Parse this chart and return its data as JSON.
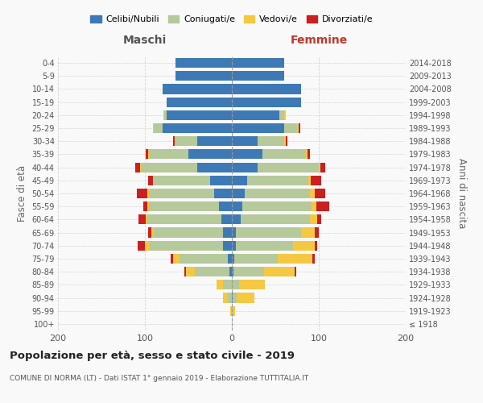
{
  "age_groups": [
    "100+",
    "95-99",
    "90-94",
    "85-89",
    "80-84",
    "75-79",
    "70-74",
    "65-69",
    "60-64",
    "55-59",
    "50-54",
    "45-49",
    "40-44",
    "35-39",
    "30-34",
    "25-29",
    "20-24",
    "15-19",
    "10-14",
    "5-9",
    "0-4"
  ],
  "birth_years": [
    "≤ 1918",
    "1919-1923",
    "1924-1928",
    "1929-1933",
    "1934-1938",
    "1939-1943",
    "1944-1948",
    "1949-1953",
    "1954-1958",
    "1959-1963",
    "1964-1968",
    "1969-1973",
    "1974-1978",
    "1979-1983",
    "1984-1988",
    "1989-1993",
    "1994-1998",
    "1999-2003",
    "2004-2008",
    "2009-2013",
    "2014-2018"
  ],
  "maschi": {
    "celibi": [
      0,
      0,
      0,
      0,
      3,
      5,
      10,
      10,
      12,
      15,
      20,
      25,
      40,
      50,
      40,
      80,
      75,
      75,
      80,
      65,
      65
    ],
    "coniugati": [
      0,
      1,
      5,
      10,
      40,
      55,
      85,
      80,
      85,
      80,
      75,
      65,
      65,
      45,
      25,
      10,
      3,
      0,
      0,
      0,
      0
    ],
    "vedovi": [
      0,
      1,
      5,
      8,
      10,
      8,
      5,
      3,
      2,
      2,
      2,
      1,
      1,
      1,
      1,
      1,
      1,
      0,
      0,
      0,
      0
    ],
    "divorziati": [
      0,
      0,
      0,
      0,
      2,
      2,
      8,
      3,
      8,
      5,
      12,
      5,
      5,
      3,
      2,
      0,
      0,
      0,
      0,
      0,
      0
    ]
  },
  "femmine": {
    "nubili": [
      0,
      0,
      1,
      0,
      2,
      3,
      5,
      5,
      10,
      12,
      15,
      18,
      30,
      35,
      30,
      60,
      55,
      80,
      80,
      60,
      60
    ],
    "coniugate": [
      0,
      1,
      5,
      8,
      35,
      50,
      65,
      75,
      80,
      80,
      75,
      70,
      70,
      50,
      30,
      15,
      5,
      0,
      0,
      0,
      0
    ],
    "vedove": [
      0,
      3,
      20,
      30,
      35,
      40,
      25,
      15,
      8,
      5,
      5,
      3,
      2,
      2,
      2,
      2,
      2,
      0,
      0,
      0,
      0
    ],
    "divorziate": [
      0,
      0,
      0,
      0,
      2,
      2,
      3,
      5,
      5,
      15,
      12,
      12,
      5,
      3,
      2,
      2,
      0,
      0,
      0,
      0,
      0
    ]
  },
  "colors": {
    "celibi": "#3d7ab5",
    "coniugati": "#b5c99a",
    "vedovi": "#f5c842",
    "divorziati": "#cc1f1f"
  },
  "title": "Popolazione per età, sesso e stato civile - 2019",
  "subtitle": "COMUNE DI NORMA (LT) - Dati ISTAT 1° gennaio 2019 - Elaborazione TUTTITALIA.IT",
  "xlabel_left": "Maschi",
  "xlabel_right": "Femmine",
  "ylabel_left": "Fasce di età",
  "ylabel_right": "Anni di nascita",
  "xlim": 200,
  "bg_color": "#f9f9f9",
  "grid_color": "#cccccc",
  "legend_labels": [
    "Celibi/Nubili",
    "Coniugati/e",
    "Vedovi/e",
    "Divorziati/e"
  ]
}
